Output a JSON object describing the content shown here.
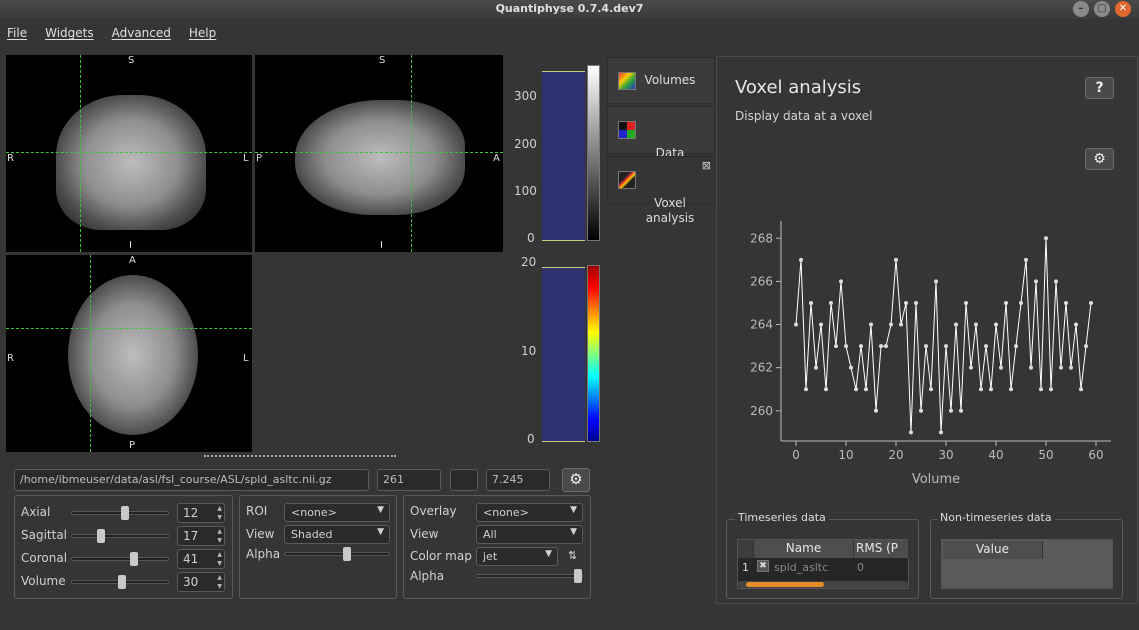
{
  "window": {
    "title": "Quantiphyse 0.7.4.dev7"
  },
  "menu": [
    "File",
    "Widgets",
    "Advanced",
    "Help"
  ],
  "views": {
    "coronal": {
      "top": "S",
      "bottom": "I",
      "left": "R",
      "right": "L"
    },
    "sagittal": {
      "top": "S",
      "bottom": "I",
      "left": "P",
      "right": "A"
    },
    "axial": {
      "top": "A",
      "bottom": "P",
      "left": "R",
      "right": "L"
    }
  },
  "hist1": {
    "ticks": [
      "300",
      "200",
      "100",
      "0"
    ]
  },
  "hist2": {
    "ticks": [
      "20",
      "10",
      "0"
    ]
  },
  "status": {
    "path": "/home/ibmeuser/data/asl/fsl_course/ASL/spld_asltc.nii.gz",
    "value1": "261",
    "value2": "",
    "value3": "7.245"
  },
  "navigation": {
    "axial_label": "Axial",
    "axial_value": "12",
    "axial_pos": 0.55,
    "sagittal_label": "Sagittal",
    "sagittal_value": "17",
    "sagittal_pos": 0.3,
    "coronal_label": "Coronal",
    "coronal_value": "41",
    "coronal_pos": 0.65,
    "volume_label": "Volume",
    "volume_value": "30",
    "volume_pos": 0.52
  },
  "roi": {
    "roi_label": "ROI",
    "roi_value": "<none>",
    "view_label": "View",
    "view_value": "Shaded",
    "alpha_label": "Alpha",
    "alpha_pos": 0.6
  },
  "overlay": {
    "overlay_label": "Overlay",
    "overlay_value": "<none>",
    "view_label": "View",
    "view_value": "All",
    "cmap_label": "Color map",
    "cmap_value": "jet",
    "alpha_label": "Alpha",
    "alpha_pos": 1.0
  },
  "tabs": [
    {
      "label": "Volumes",
      "icon": "volumes-icon"
    },
    {
      "label": "Data\nStatistics",
      "icon": "data-statistics-icon"
    },
    {
      "label": "Voxel\nanalysis",
      "icon": "voxel-analysis-icon"
    }
  ],
  "panel": {
    "title": "Voxel analysis",
    "subtitle": "Display data at a voxel",
    "help": "?",
    "timeseries_group": "Timeseries data",
    "non_timeseries_group": "Non-timeseries data",
    "ts_columns": [
      "Name",
      "RMS (P"
    ],
    "ts_row": {
      "index": "1",
      "name": "spld_asltc",
      "rms": "0"
    },
    "nts_columns": [
      "Value"
    ]
  },
  "chart_data": {
    "type": "line",
    "xlabel": "Volume",
    "ylabel": "",
    "xlim": [
      -3,
      63
    ],
    "ylim": [
      258.6,
      268.8
    ],
    "xticks": [
      0,
      10,
      20,
      30,
      40,
      50,
      60
    ],
    "yticks": [
      260,
      262,
      264,
      266,
      268
    ],
    "x": [
      0,
      1,
      2,
      3,
      4,
      5,
      6,
      7,
      8,
      9,
      10,
      11,
      12,
      13,
      14,
      15,
      16,
      17,
      18,
      19,
      20,
      21,
      22,
      23,
      24,
      25,
      26,
      27,
      28,
      29,
      30,
      31,
      32,
      33,
      34,
      35,
      36,
      37,
      38,
      39,
      40,
      41,
      42,
      43,
      44,
      45,
      46,
      47,
      48,
      49,
      50,
      51,
      52,
      53,
      54,
      55,
      56,
      57,
      58,
      59
    ],
    "values": [
      264,
      267,
      261,
      265,
      262,
      264,
      261,
      265,
      263,
      266,
      263,
      262,
      261,
      263,
      261,
      264,
      260,
      263,
      263,
      264,
      267,
      264,
      265,
      259,
      265,
      260,
      263,
      261,
      266,
      259,
      263,
      260,
      264,
      260,
      265,
      262,
      264,
      261,
      263,
      261,
      264,
      262,
      265,
      261,
      263,
      265,
      267,
      262,
      266,
      261,
      268,
      261,
      266,
      262,
      265,
      262,
      264,
      261,
      263,
      265
    ],
    "color": "#ffffff"
  },
  "colors": {
    "background": "#353535",
    "histogram": "#2d3370",
    "crosshair": "#3fc33f",
    "accent": "#e58b2a"
  }
}
